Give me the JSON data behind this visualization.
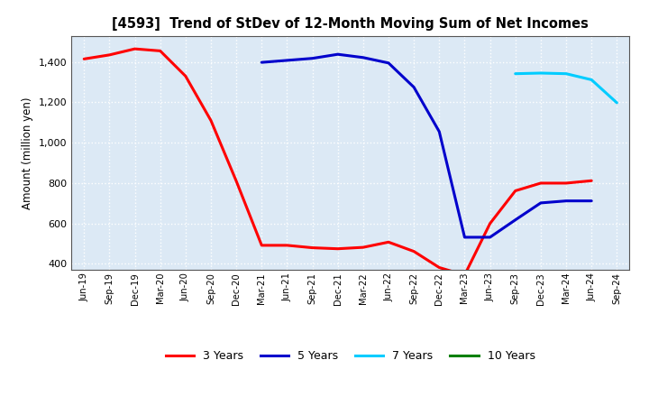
{
  "title": "[4593]  Trend of StDev of 12-Month Moving Sum of Net Incomes",
  "ylabel": "Amount (million yen)",
  "ylim": [
    370,
    1530
  ],
  "yticks": [
    400,
    600,
    800,
    1000,
    1200,
    1400
  ],
  "ytick_labels": [
    "400",
    "600",
    "800",
    "1,000",
    "1,200",
    "1,400"
  ],
  "background_color": "#ffffff",
  "plot_bg_color": "#dce9f5",
  "grid_color": "#ffffff",
  "x_labels": [
    "Jun-19",
    "Sep-19",
    "Dec-19",
    "Mar-20",
    "Jun-20",
    "Sep-20",
    "Dec-20",
    "Mar-21",
    "Jun-21",
    "Sep-21",
    "Dec-21",
    "Mar-22",
    "Jun-22",
    "Sep-22",
    "Dec-22",
    "Mar-23",
    "Jun-23",
    "Sep-23",
    "Dec-23",
    "Mar-24",
    "Jun-24",
    "Sep-24"
  ],
  "series": {
    "3 Years": {
      "color": "#ff0000",
      "data": [
        [
          "Jun-19",
          1415
        ],
        [
          "Sep-19",
          1435
        ],
        [
          "Dec-19",
          1465
        ],
        [
          "Mar-20",
          1455
        ],
        [
          "Jun-20",
          1330
        ],
        [
          "Sep-20",
          1110
        ],
        [
          "Dec-20",
          810
        ],
        [
          "Mar-21",
          492
        ],
        [
          "Jun-21",
          492
        ],
        [
          "Sep-21",
          480
        ],
        [
          "Dec-21",
          475
        ],
        [
          "Mar-22",
          482
        ],
        [
          "Jun-22",
          508
        ],
        [
          "Sep-22",
          462
        ],
        [
          "Dec-22",
          382
        ],
        [
          "Mar-23",
          345
        ],
        [
          "Jun-23",
          600
        ],
        [
          "Sep-23",
          762
        ],
        [
          "Dec-23",
          800
        ],
        [
          "Mar-24",
          800
        ],
        [
          "Jun-24",
          812
        ],
        [
          "Sep-24",
          null
        ]
      ]
    },
    "5 Years": {
      "color": "#0000cc",
      "data": [
        [
          "Jun-19",
          null
        ],
        [
          "Sep-19",
          null
        ],
        [
          "Dec-19",
          null
        ],
        [
          "Mar-20",
          null
        ],
        [
          "Jun-20",
          null
        ],
        [
          "Sep-20",
          null
        ],
        [
          "Dec-20",
          null
        ],
        [
          "Mar-21",
          1398
        ],
        [
          "Jun-21",
          1408
        ],
        [
          "Sep-21",
          1418
        ],
        [
          "Dec-21",
          1438
        ],
        [
          "Mar-22",
          1422
        ],
        [
          "Jun-22",
          1395
        ],
        [
          "Sep-22",
          1275
        ],
        [
          "Dec-22",
          1055
        ],
        [
          "Mar-23",
          532
        ],
        [
          "Jun-23",
          532
        ],
        [
          "Sep-23",
          618
        ],
        [
          "Dec-23",
          702
        ],
        [
          "Mar-24",
          712
        ],
        [
          "Jun-24",
          712
        ],
        [
          "Sep-24",
          null
        ]
      ]
    },
    "7 Years": {
      "color": "#00ccff",
      "data": [
        [
          "Sep-23",
          1342
        ],
        [
          "Dec-23",
          1345
        ],
        [
          "Mar-24",
          1342
        ],
        [
          "Jun-24",
          1312
        ],
        [
          "Sep-24",
          1198
        ]
      ]
    },
    "10 Years": {
      "color": "#008000",
      "data": []
    }
  },
  "legend_entries": [
    "3 Years",
    "5 Years",
    "7 Years",
    "10 Years"
  ],
  "legend_colors": [
    "#ff0000",
    "#0000cc",
    "#00ccff",
    "#008000"
  ]
}
